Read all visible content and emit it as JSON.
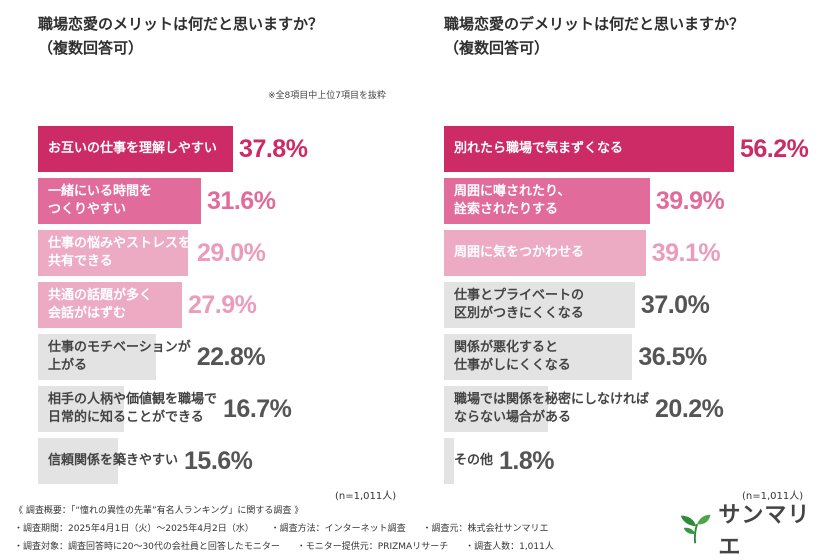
{
  "charts": {
    "left": {
      "title": "職場恋愛のメリットは何だと思いますか？\n（複数回答可）",
      "note": "※全8項目中上位7項目を抜粋",
      "n": "(n=1,011人)"
    },
    "right": {
      "title": "職場恋愛のデメリットは何だと思いますか？\n（複数回答可）",
      "n": "(n=1,011人)"
    }
  },
  "chart_data": [
    {
      "type": "bar",
      "orientation": "horizontal",
      "title": "職場恋愛のメリットは何だと思いますか？（複数回答可）",
      "categories": [
        "お互いの仕事を理解しやすい",
        "一緒にいる時間を\nつくりやすい",
        "仕事の悩みやストレスを\n共有できる",
        "共通の話題が多く\n会話がはずむ",
        "仕事のモチベーションが\n上がる",
        "相手の人柄や価値観を職場で\n日常的に知ることができる",
        "信頼関係を築きやすい"
      ],
      "values": [
        37.8,
        31.6,
        29.0,
        27.9,
        22.8,
        16.7,
        15.6
      ],
      "value_labels": [
        "37.8%",
        "31.6%",
        "29.0%",
        "27.9%",
        "22.8%",
        "16.7%",
        "15.6%"
      ],
      "unit": "%",
      "xlim": [
        0,
        60
      ]
    },
    {
      "type": "bar",
      "orientation": "horizontal",
      "title": "職場恋愛のデメリットは何だと思いますか？（複数回答可）",
      "categories": [
        "別れたら職場で気まずくなる",
        "周囲に噂されたり、\n詮索されたりする",
        "周囲に気をつかわせる",
        "仕事とプライベートの\n区別がつきにくくなる",
        "関係が悪化すると\n仕事がしにくくなる",
        "職場では関係を秘密にしなければ\nならない場合がある",
        "その他"
      ],
      "values": [
        56.2,
        39.9,
        39.1,
        37.0,
        36.5,
        20.2,
        1.8
      ],
      "value_labels": [
        "56.2%",
        "39.9%",
        "39.1%",
        "37.0%",
        "36.5%",
        "20.2%",
        "1.8%"
      ],
      "unit": "%",
      "xlim": [
        0,
        60
      ]
    }
  ],
  "styles": {
    "top1": {
      "fill": "#cd2b66",
      "text": "#ffffff",
      "value": "#cd2b66"
    },
    "top2": {
      "fill": "#e16b9a",
      "text": "#ffffff",
      "value": "#e16b9a"
    },
    "top3": {
      "fill": "#ecabc3",
      "text": "#ffffff",
      "value": "#ec9cbb"
    },
    "rest": {
      "fill": "#e3e3e3",
      "text": "#444444",
      "value": "#555555"
    },
    "left_tiers": [
      "top1",
      "top2",
      "top3",
      "top3",
      "rest",
      "rest",
      "rest"
    ],
    "right_tiers": [
      "top1",
      "top2",
      "top3",
      "rest",
      "rest",
      "rest",
      "rest"
    ]
  },
  "footer": {
    "line1": "《 調査概要：「“憧れの異性の先輩”有名人ランキング」に関する調査 》",
    "line2": [
      "・調査期間：2025年4月1日（火）〜2025年4月2日（水）",
      "・調査方法：インターネット調査",
      "・調査元：株式会社サンマリエ"
    ],
    "line3": [
      "・調査対象：調査回答時に20〜30代の会社員と回答したモニター",
      "・モニター提供元：PRIZMAリサーチ",
      "・調査人数：1,011人"
    ]
  },
  "logo": {
    "text": "サンマリエ",
    "icon": "leaf-logo-icon",
    "color": "#2f8a3a"
  }
}
